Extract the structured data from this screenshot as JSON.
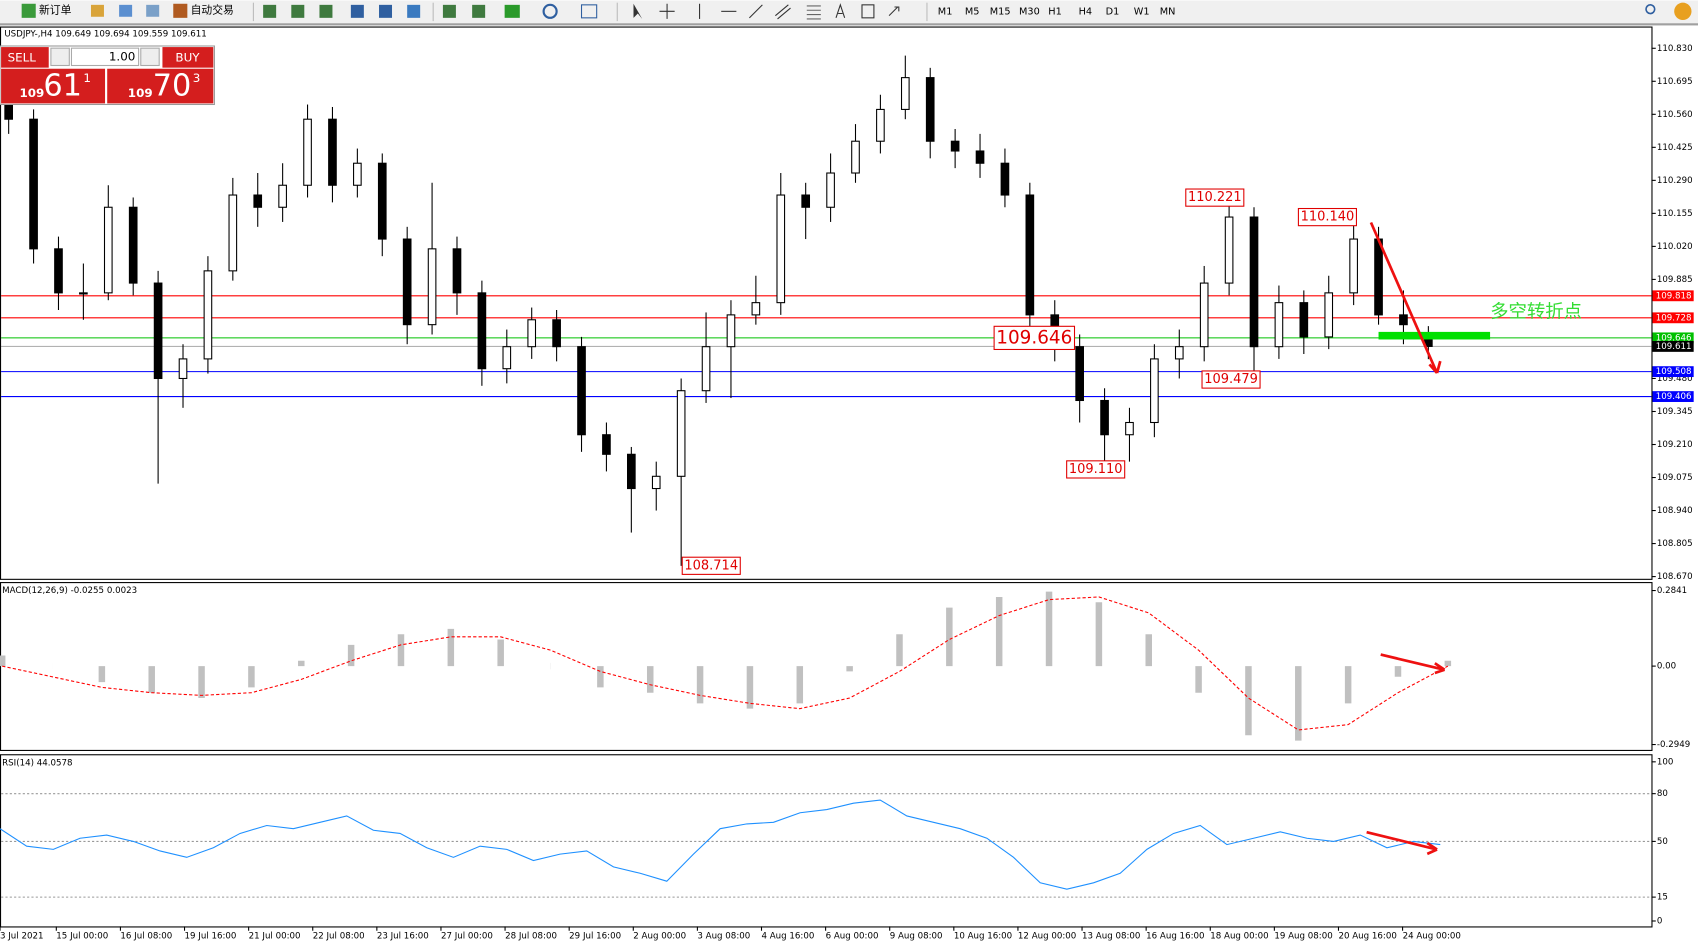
{
  "toolbar": {
    "new_order": "新订单",
    "auto_trading": "自动交易",
    "timeframes": [
      "M1",
      "M5",
      "M15",
      "M30",
      "H1",
      "H4",
      "D1",
      "W1",
      "MN"
    ]
  },
  "trade_panel": {
    "sell": "SELL",
    "buy": "BUY",
    "lots": "1.00",
    "bid": {
      "big": "109",
      "main": "61",
      "small": "1"
    },
    "ask": {
      "big": "109",
      "main": "70",
      "small": "3"
    }
  },
  "time_axis": {
    "labels": [
      "3 Jul 2021",
      "15 Jul 00:00",
      "16 Jul 08:00",
      "19 Jul 16:00",
      "21 Jul 00:00",
      "22 Jul 08:00",
      "23 Jul 16:00",
      "27 Jul 00:00",
      "28 Jul 08:00",
      "29 Jul 16:00",
      "2 Aug 00:00",
      "3 Aug 08:00",
      "4 Aug 16:00",
      "6 Aug 00:00",
      "9 Aug 08:00",
      "10 Aug 16:00",
      "12 Aug 00:00",
      "13 Aug 08:00",
      "16 Aug 16:00",
      "18 Aug 00:00",
      "19 Aug 08:00",
      "20 Aug 16:00",
      "24 Aug 00:00"
    ]
  },
  "chart_data": [
    {
      "type": "candlestick",
      "title": "USDJPY-,H4  109.649 109.694 109.559 109.611",
      "open": [
        110.6,
        110.54,
        110.01,
        109.83,
        109.83,
        110.18,
        109.87,
        109.48,
        109.56,
        109.92,
        110.23,
        110.18,
        110.27,
        110.54,
        110.27,
        110.36,
        110.05,
        109.7,
        110.01,
        109.83,
        109.52,
        109.61,
        109.72,
        109.61,
        109.25,
        109.17,
        109.03,
        109.08,
        109.43,
        109.61,
        109.74,
        109.79,
        110.23,
        110.18,
        110.32,
        110.45,
        110.58,
        110.71,
        110.45,
        110.41,
        110.36,
        110.23,
        109.74,
        109.61,
        109.39,
        109.25,
        109.3,
        109.56,
        109.61,
        109.87,
        110.14,
        109.61,
        109.79,
        109.65,
        109.83,
        110.05,
        109.74,
        109.649
      ],
      "high": [
        110.66,
        110.58,
        110.06,
        109.95,
        110.27,
        110.22,
        109.92,
        109.62,
        109.98,
        110.3,
        110.32,
        110.36,
        110.6,
        110.59,
        110.42,
        110.4,
        110.1,
        110.28,
        110.06,
        109.88,
        109.68,
        109.77,
        109.76,
        109.65,
        109.3,
        109.2,
        109.14,
        109.48,
        109.75,
        109.8,
        109.9,
        110.32,
        110.28,
        110.4,
        110.52,
        110.64,
        110.8,
        110.75,
        110.5,
        110.48,
        110.42,
        110.28,
        109.8,
        109.66,
        109.44,
        109.36,
        109.62,
        109.68,
        109.94,
        110.221,
        110.18,
        109.86,
        109.84,
        109.9,
        110.14,
        110.1,
        109.84,
        109.694
      ],
      "low": [
        110.48,
        109.95,
        109.76,
        109.72,
        109.8,
        109.82,
        109.05,
        109.36,
        109.5,
        109.88,
        110.1,
        110.12,
        110.22,
        110.2,
        110.22,
        109.98,
        109.62,
        109.66,
        109.74,
        109.45,
        109.46,
        109.56,
        109.55,
        109.18,
        109.1,
        108.85,
        108.94,
        108.714,
        109.38,
        109.4,
        109.7,
        109.74,
        110.05,
        110.12,
        110.28,
        110.4,
        110.54,
        110.38,
        110.34,
        110.3,
        110.18,
        109.68,
        109.55,
        109.3,
        109.11,
        109.14,
        109.24,
        109.48,
        109.55,
        109.82,
        109.5,
        109.56,
        109.58,
        109.6,
        109.78,
        109.7,
        109.62,
        109.559
      ],
      "close": [
        110.54,
        110.01,
        109.83,
        109.83,
        110.18,
        109.87,
        109.48,
        109.56,
        109.92,
        110.23,
        110.18,
        110.27,
        110.54,
        110.27,
        110.36,
        110.05,
        109.7,
        110.01,
        109.83,
        109.52,
        109.61,
        109.72,
        109.61,
        109.25,
        109.17,
        109.03,
        109.08,
        109.43,
        109.61,
        109.74,
        109.79,
        110.23,
        110.18,
        110.32,
        110.45,
        110.58,
        110.71,
        110.45,
        110.41,
        110.36,
        110.23,
        109.74,
        109.61,
        109.39,
        109.25,
        109.3,
        109.56,
        109.61,
        109.87,
        110.14,
        109.61,
        109.79,
        109.65,
        109.83,
        110.05,
        109.74,
        109.7,
        109.611
      ],
      "ylim": [
        108.661,
        110.919
      ],
      "yticks": [
        {
          "value": 110.83,
          "label": "110.830"
        },
        {
          "value": 110.695,
          "label": "110.695"
        },
        {
          "value": 110.56,
          "label": "110.560"
        },
        110.425,
        {
          "value": 110.29,
          "label": "110.290"
        },
        110.155,
        {
          "value": 110.02,
          "label": "110.020"
        },
        109.885,
        {
          "value": 109.48,
          "label": "109.480"
        },
        109.345,
        {
          "value": 109.21,
          "label": "109.210"
        },
        109.075,
        {
          "value": 108.94,
          "label": "108.940"
        },
        108.805,
        {
          "value": 108.67,
          "label": "108.670"
        }
      ],
      "levels": [
        {
          "value": 109.818,
          "color": "#ff0000"
        },
        {
          "value": 109.728,
          "color": "#ff0000"
        },
        {
          "value": 109.646,
          "color": "#00c000"
        },
        {
          "value": 109.611,
          "color": "#000000"
        },
        {
          "value": 109.508,
          "color": "#0000ff"
        },
        {
          "value": 109.406,
          "color": "#0000ff"
        }
      ],
      "annotations": [
        "110.221",
        "110.140",
        "109.646",
        "109.479",
        "109.110",
        "108.714"
      ],
      "pivot_label": "多空转折点"
    },
    {
      "type": "macd",
      "title": "MACD(12,26,9) -0.0255 0.0023",
      "histogram": [
        0.04,
        0.0,
        -0.06,
        -0.1,
        -0.12,
        -0.08,
        0.02,
        0.08,
        0.12,
        0.14,
        0.1,
        0.0,
        -0.08,
        -0.1,
        -0.14,
        -0.16,
        -0.14,
        -0.02,
        0.12,
        0.22,
        0.26,
        0.28,
        0.24,
        0.12,
        -0.1,
        -0.26,
        -0.28,
        -0.14,
        -0.04,
        0.02
      ],
      "signal": [
        0.0,
        -0.04,
        -0.08,
        -0.1,
        -0.11,
        -0.1,
        -0.05,
        0.02,
        0.08,
        0.11,
        0.11,
        0.06,
        -0.02,
        -0.07,
        -0.11,
        -0.14,
        -0.16,
        -0.12,
        -0.02,
        0.1,
        0.19,
        0.25,
        0.26,
        0.2,
        0.06,
        -0.12,
        -0.24,
        -0.22,
        -0.1,
        0.0
      ],
      "hist_color": "#c0c0c0",
      "signal_color": "#ff0000",
      "ylim": [
        -0.315,
        0.312
      ],
      "yticks": [
        0.2841,
        {
          "value": 0,
          "label": "0.00"
        },
        -0.2949
      ]
    },
    {
      "type": "rsi",
      "title": "RSI(14) 44.0578",
      "color": "#1e90ff",
      "values": [
        58,
        47,
        45,
        52,
        54,
        50,
        44,
        40,
        46,
        55,
        60,
        58,
        62,
        66,
        57,
        55,
        46,
        40,
        47,
        45,
        38,
        42,
        44,
        34,
        30,
        25,
        42,
        58,
        61,
        62,
        68,
        70,
        74,
        76,
        66,
        62,
        58,
        52,
        40,
        24,
        20,
        24,
        30,
        45,
        55,
        60,
        48,
        52,
        56,
        52,
        50,
        54,
        46,
        50,
        48
      ],
      "ylim": [
        -3.4,
        104.1
      ],
      "yticks": [
        100,
        80,
        50,
        15,
        0
      ]
    }
  ]
}
